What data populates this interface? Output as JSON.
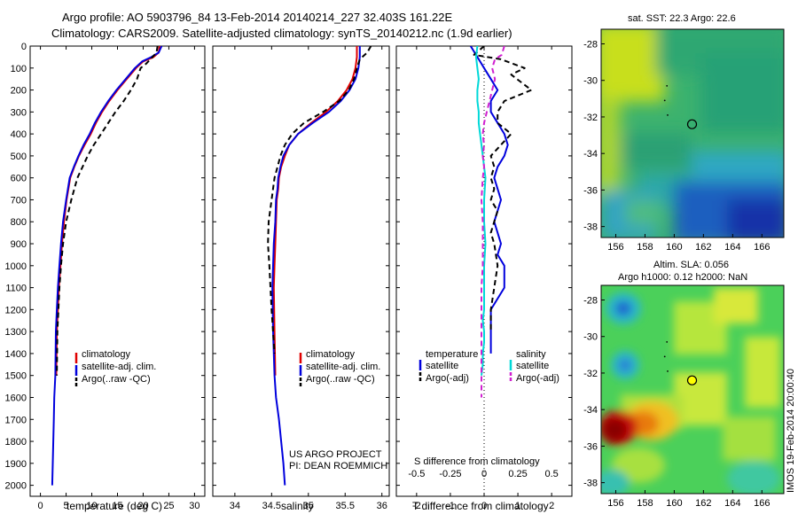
{
  "title": {
    "line1": "Argo profile: AO 5903796_84 13-Feb-2014 20140214_227 32.403S 161.22E",
    "line2": "Climatology: CARS2009. Satellite-adjusted climatology: synTS_20140212.nc (1.9d earlier)"
  },
  "credits": {
    "line1": "US ARGO PROJECT",
    "line2": "PI: DEAN ROEMMICH"
  },
  "watermark": "IMOS 19-Feb-2014 20:00:40",
  "colors": {
    "climatology": "#e00000",
    "satellite": "#0000dd",
    "argo": "#000000",
    "s_satellite": "#00d8d8",
    "s_argo": "#d020d0"
  },
  "chart_data": [
    {
      "type": "line",
      "panel": "temperature",
      "xlabel": "temperature (deg C)",
      "ylabel": "",
      "xlim": [
        -2,
        32
      ],
      "ylim": [
        2050,
        0
      ],
      "xticks": [
        0,
        5,
        10,
        15,
        20,
        25,
        30
      ],
      "yticks": [
        0,
        100,
        200,
        300,
        400,
        500,
        600,
        700,
        800,
        900,
        1000,
        1100,
        1200,
        1300,
        1400,
        1500,
        1600,
        1700,
        1800,
        1900,
        2000
      ],
      "legend": [
        "climatology",
        "satellite-adj. clim.",
        "Argo(..raw -QC)"
      ],
      "legend_loc": "lower-center",
      "series": [
        {
          "name": "climatology",
          "color": "#e00000",
          "dash": "",
          "x": [
            23.2,
            23.0,
            22.0,
            20.0,
            18.6,
            16.8,
            15.0,
            13.4,
            12.0,
            10.8,
            9.8,
            8.6,
            7.5,
            6.6,
            5.8,
            5.1,
            4.6,
            4.2,
            3.9,
            3.6,
            3.4,
            3.2,
            3.1
          ],
          "y": [
            0,
            30,
            50,
            70,
            100,
            150,
            200,
            250,
            300,
            350,
            400,
            450,
            500,
            550,
            600,
            700,
            800,
            900,
            1000,
            1100,
            1200,
            1300,
            1500
          ]
        },
        {
          "name": "satellite-adj. clim.",
          "color": "#0000dd",
          "dash": "",
          "x": [
            23.6,
            23.0,
            21.6,
            19.8,
            18.4,
            16.6,
            14.8,
            13.2,
            11.8,
            10.6,
            9.6,
            8.4,
            7.4,
            6.5,
            5.7,
            5.0,
            4.4,
            4.0,
            3.7,
            3.4,
            3.2,
            3.0,
            2.9,
            2.7,
            2.6,
            2.5,
            2.4,
            2.3
          ],
          "y": [
            0,
            30,
            50,
            70,
            100,
            150,
            200,
            250,
            300,
            350,
            400,
            450,
            500,
            550,
            600,
            700,
            800,
            900,
            1000,
            1100,
            1200,
            1300,
            1500,
            1600,
            1700,
            1800,
            1900,
            2000
          ]
        },
        {
          "name": "Argo(..raw -QC)",
          "color": "#000000",
          "dash": "6,4",
          "x": [
            22.8,
            22.6,
            21.8,
            20.6,
            19.5,
            18.8,
            17.6,
            16.2,
            14.6,
            13.2,
            11.8,
            10.4,
            9.2,
            8.2,
            7.2,
            6.0,
            5.0,
            4.4,
            4.0,
            3.7,
            3.5,
            3.3,
            3.2
          ],
          "y": [
            0,
            30,
            50,
            80,
            100,
            150,
            200,
            250,
            300,
            350,
            400,
            450,
            500,
            550,
            600,
            700,
            800,
            900,
            1000,
            1100,
            1200,
            1300,
            1500
          ]
        }
      ]
    },
    {
      "type": "line",
      "panel": "salinity",
      "xlabel": "salinity",
      "ylabel": "",
      "xlim": [
        33.7,
        36.1
      ],
      "ylim": [
        2050,
        0
      ],
      "xticks": [
        34,
        34.5,
        35,
        35.5,
        36
      ],
      "legend": [
        "climatology",
        "satellite-adj. clim.",
        "Argo(..raw -QC)"
      ],
      "legend_loc": "lower-right",
      "series": [
        {
          "name": "climatology",
          "color": "#e00000",
          "dash": "",
          "x": [
            35.66,
            35.66,
            35.64,
            35.6,
            35.52,
            35.4,
            35.24,
            35.04,
            34.86,
            34.74,
            34.68,
            34.63,
            34.6,
            34.59,
            34.57,
            34.56,
            34.55,
            34.54,
            34.53,
            34.54,
            34.55
          ],
          "y": [
            0,
            50,
            100,
            150,
            200,
            250,
            300,
            350,
            400,
            450,
            500,
            550,
            600,
            650,
            700,
            800,
            900,
            1000,
            1100,
            1300,
            1500
          ]
        },
        {
          "name": "satellite-adj. clim.",
          "color": "#0000dd",
          "dash": "",
          "x": [
            35.7,
            35.7,
            35.68,
            35.64,
            35.56,
            35.44,
            35.28,
            35.06,
            34.86,
            34.74,
            34.66,
            34.62,
            34.59,
            34.58,
            34.56,
            34.55,
            34.53,
            34.52,
            34.51,
            34.52,
            34.54,
            34.56,
            34.6,
            34.63,
            34.66,
            34.68
          ],
          "y": [
            0,
            50,
            100,
            150,
            200,
            250,
            300,
            350,
            400,
            450,
            500,
            550,
            600,
            650,
            700,
            800,
            900,
            1000,
            1100,
            1300,
            1500,
            1600,
            1700,
            1800,
            1900,
            2000
          ]
        },
        {
          "name": "Argo(..raw -QC)",
          "color": "#000000",
          "dash": "6,4",
          "x": [
            35.85,
            35.8,
            35.7,
            35.66,
            35.62,
            35.55,
            35.42,
            35.2,
            34.94,
            34.78,
            34.68,
            34.62,
            34.58,
            34.54,
            34.5,
            34.46,
            34.45,
            34.47,
            34.5,
            34.54
          ],
          "y": [
            0,
            30,
            60,
            100,
            150,
            200,
            250,
            300,
            350,
            400,
            450,
            500,
            550,
            600,
            700,
            800,
            900,
            1000,
            1200,
            1400
          ]
        }
      ]
    },
    {
      "type": "line",
      "panel": "difference",
      "title_bottom": "S difference from climatology",
      "xlabel": "T difference from climatology",
      "xlim": [
        -2.6,
        2.6
      ],
      "ylim": [
        2050,
        0
      ],
      "xticks": [
        -2,
        -1,
        0,
        1,
        2
      ],
      "s_ticks": [
        -0.5,
        -0.25,
        0,
        0.25,
        0.5
      ],
      "legend_headers": [
        "temperature",
        "salinity"
      ],
      "legend": [
        "satellite",
        "Argo(-adj)",
        "satellite",
        "Argo(-adj)"
      ],
      "series": [
        {
          "name": "satellite",
          "group": "temperature",
          "color": "#0000dd",
          "dash": "",
          "x": [
            -0.4,
            -0.2,
            0.0,
            0.2,
            0.4,
            0.2,
            0.2,
            0.4,
            0.6,
            0.7,
            0.6,
            0.4,
            0.3,
            0.4,
            0.5,
            0.4,
            0.3,
            0.4,
            0.5,
            0.4,
            0.6,
            0.6,
            0.2,
            0.2,
            0.2
          ],
          "y": [
            0,
            50,
            100,
            150,
            200,
            250,
            300,
            350,
            400,
            450,
            500,
            550,
            600,
            650,
            700,
            750,
            800,
            850,
            900,
            950,
            1000,
            1100,
            1200,
            1300,
            1400
          ]
        },
        {
          "name": "Argo(-adj)",
          "group": "temperature",
          "color": "#000000",
          "dash": "6,4",
          "x": [
            0.0,
            -0.3,
            0.5,
            1.2,
            0.8,
            1.4,
            0.6,
            0.4,
            0.4,
            0.8,
            0.5,
            0.2,
            0.3,
            0.2,
            0.3,
            0.2,
            0.4,
            0.3,
            0.2,
            0.3,
            0.4,
            0.3,
            0.2,
            0.2
          ],
          "y": [
            0,
            40,
            60,
            100,
            130,
            200,
            250,
            300,
            350,
            400,
            450,
            500,
            550,
            600,
            650,
            700,
            750,
            800,
            850,
            900,
            1000,
            1100,
            1200,
            1300
          ]
        },
        {
          "name": "satellite",
          "group": "salinity",
          "color": "#00d8d8",
          "dash": "",
          "x": [
            -0.05,
            -0.06,
            -0.05,
            -0.04,
            -0.05,
            -0.05,
            -0.04,
            -0.04,
            -0.03,
            -0.02,
            -0.01,
            0.0,
            0.01,
            0.0,
            0.0,
            0.01,
            0.0,
            0.0,
            0.0,
            -0.01,
            0.0,
            0.0,
            -0.01,
            -0.01,
            -0.02
          ],
          "y": [
            0,
            50,
            100,
            150,
            200,
            250,
            300,
            350,
            400,
            450,
            500,
            550,
            600,
            700,
            800,
            900,
            1000,
            1100,
            1200,
            1250,
            1300,
            1350,
            1400,
            1450,
            1500
          ]
        },
        {
          "name": "Argo(-adj)",
          "group": "salinity",
          "color": "#d020d0",
          "dash": "6,4",
          "x": [
            0.15,
            0.13,
            0.08,
            0.06,
            0.08,
            0.06,
            0.04,
            0.02,
            0.0,
            -0.01,
            0.0,
            -0.01,
            0.0,
            -0.01,
            -0.02,
            -0.01,
            -0.01,
            -0.01,
            -0.02,
            -0.02,
            -0.02,
            -0.02,
            -0.02,
            -0.02
          ],
          "y": [
            0,
            40,
            60,
            100,
            150,
            200,
            250,
            300,
            350,
            400,
            450,
            500,
            550,
            600,
            700,
            800,
            900,
            1000,
            1100,
            1200,
            1300,
            1400,
            1500,
            1600
          ]
        }
      ]
    },
    {
      "type": "heatmap",
      "panel": "sst_map",
      "title": "sat. SST: 22.3 Argo: 22.6",
      "xticks": [
        156,
        158,
        160,
        162,
        164,
        166
      ],
      "yticks": [
        -28,
        -30,
        -32,
        -34,
        -36,
        -38
      ],
      "xlim": [
        155,
        167.5
      ],
      "ylim": [
        -38.6,
        -27.2
      ],
      "marker": {
        "lon": 161.22,
        "lat": -32.4
      }
    },
    {
      "type": "heatmap",
      "panel": "sla_map",
      "title_line1": "Altim. SLA: 0.056",
      "title_line2": "Argo h1000: 0.12 h2000: NaN",
      "xticks": [
        156,
        158,
        160,
        162,
        164,
        166
      ],
      "yticks": [
        -28,
        -30,
        -32,
        -34,
        -36,
        -38
      ],
      "xlim": [
        155,
        167.5
      ],
      "ylim": [
        -38.6,
        -27.2
      ],
      "marker": {
        "lon": 161.22,
        "lat": -32.4
      }
    }
  ]
}
